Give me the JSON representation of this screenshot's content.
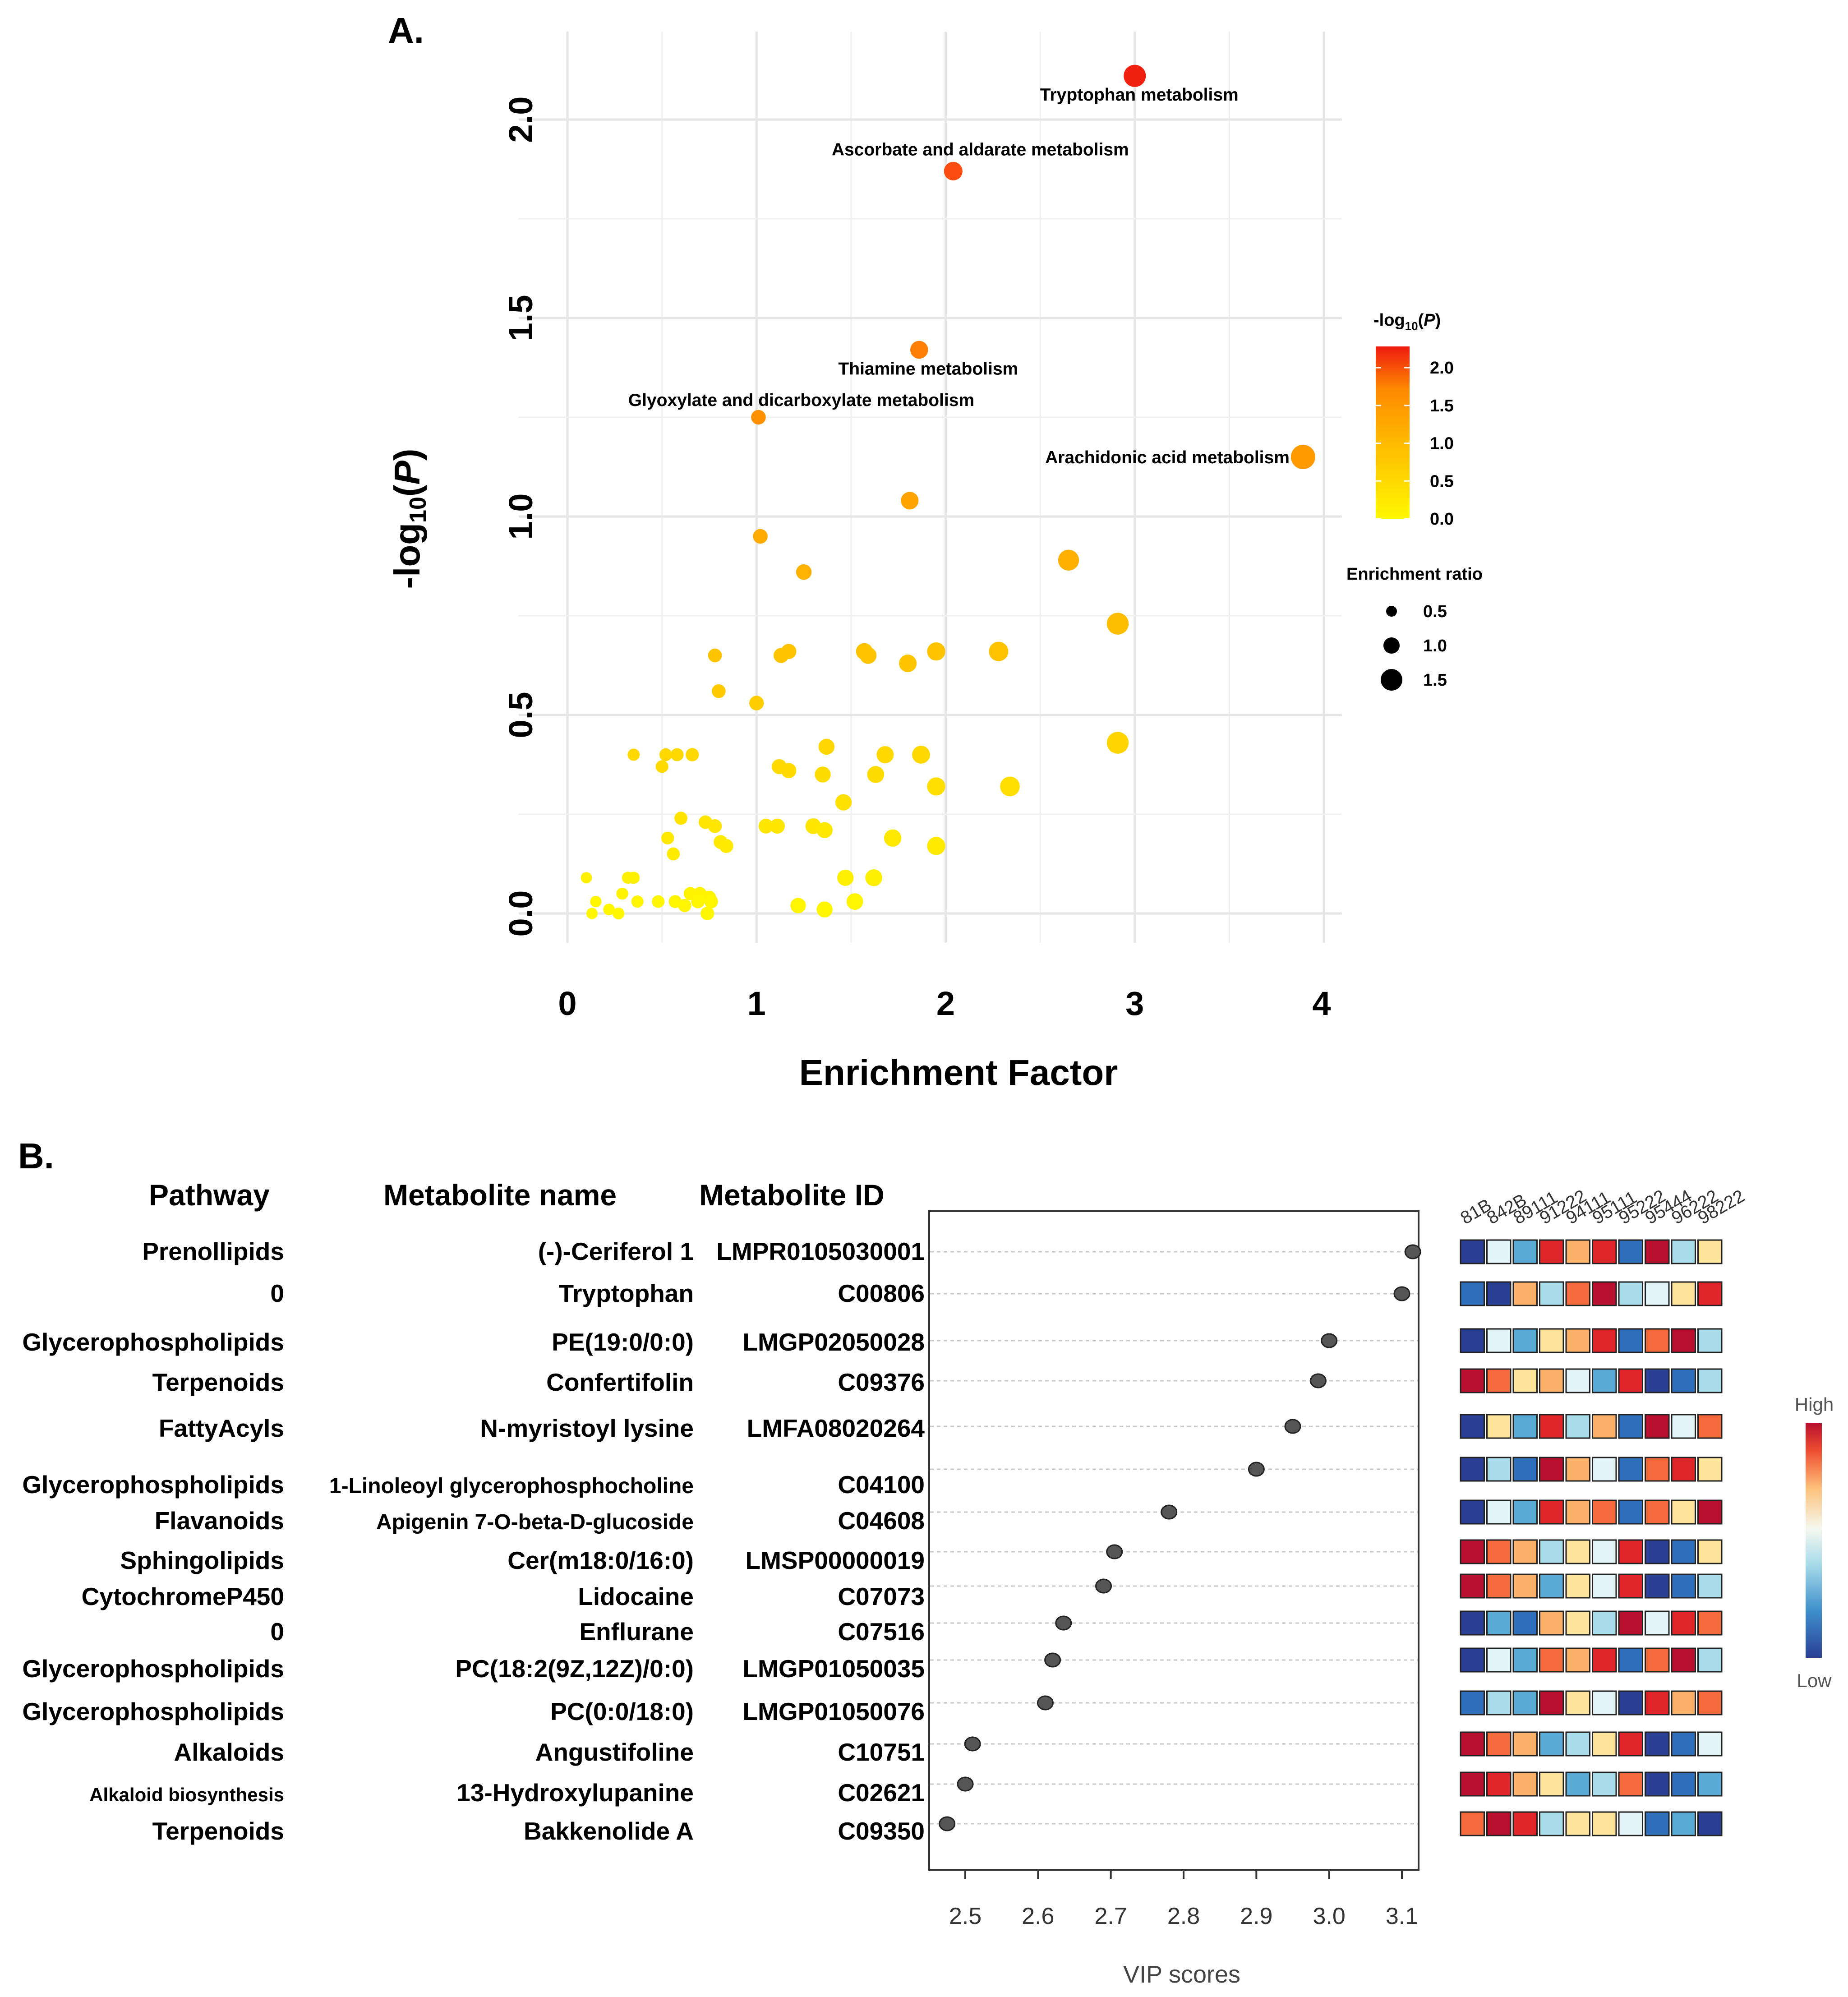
{
  "panel_a": {
    "label": "A.",
    "xlabel": "Enrichment Factor",
    "ylabel_main": "-log",
    "ylabel_sub": "10",
    "ylabel_open": "(",
    "ylabel_var": "P",
    "ylabel_close": ")",
    "color_legend": {
      "title_main": "-log",
      "title_sub": "10",
      "title_open": "(",
      "title_var": "P",
      "title_close": ")",
      "ticks": [
        "2.0",
        "1.5",
        "1.0",
        "0.5",
        "0.0"
      ],
      "tick_values": [
        2.0,
        1.5,
        1.0,
        0.5,
        0.0
      ],
      "colors": [
        "#fff200",
        "#ffc200",
        "#ff9a00",
        "#ff6010",
        "#ee1a10"
      ]
    },
    "size_legend": {
      "title": "Enrichment ratio",
      "labels": [
        "0.5",
        "1.0",
        "1.5"
      ],
      "values": [
        0.5,
        1.0,
        1.5
      ]
    }
  },
  "panel_b": {
    "label": "B.",
    "headers": {
      "pathway": "Pathway",
      "metabolite_name": "Metabolite name",
      "metabolite_id": "Metabolite ID"
    },
    "rows": [
      {
        "pathway": "Prenollipids",
        "name": "(-)-Ceriferol 1",
        "id": "LMPR0105030001",
        "vip": 3.115
      },
      {
        "pathway": "0",
        "name": "Tryptophan",
        "id": "C00806",
        "vip": 3.1
      },
      {
        "pathway": "Glycerophospholipids",
        "name": "PE(19:0/0:0)",
        "id": "LMGP02050028",
        "vip": 3.0
      },
      {
        "pathway": "Terpenoids",
        "name": "Confertifolin",
        "id": "C09376",
        "vip": 2.985
      },
      {
        "pathway": "FattyAcyls",
        "name": "N-myristoyl lysine",
        "id": "LMFA08020264",
        "vip": 2.95
      },
      {
        "pathway": "Glycerophospholipids",
        "name": "1-Linoleoyl glycerophosphocholine",
        "id": "C04100",
        "vip": 2.9
      },
      {
        "pathway": "Flavanoids",
        "name": "Apigenin 7-O-beta-D-glucoside",
        "id": "C04608",
        "vip": 2.78
      },
      {
        "pathway": "Sphingolipids",
        "name": "Cer(m18:0/16:0)",
        "id": "LMSP00000019",
        "vip": 2.705
      },
      {
        "pathway": "CytochromeP450",
        "name": "Lidocaine",
        "id": "C07073",
        "vip": 2.69
      },
      {
        "pathway": "0",
        "name": "Enflurane",
        "id": "C07516",
        "vip": 2.635
      },
      {
        "pathway": "Glycerophospholipids",
        "name": "PC(18:2(9Z,12Z)/0:0)",
        "id": "LMGP01050035",
        "vip": 2.62
      },
      {
        "pathway": "Glycerophospholipids",
        "name": "PC(0:0/18:0)",
        "id": "LMGP01050076",
        "vip": 2.61
      },
      {
        "pathway": "Alkaloids",
        "name": "Angustifoline",
        "id": "C10751",
        "vip": 2.51
      },
      {
        "pathway": "Alkaloid biosynthesis",
        "name": "13-Hydroxylupanine",
        "id": "C02621",
        "vip": 2.5
      },
      {
        "pathway": "Terpenoids",
        "name": "Bakkenolide A",
        "id": "C09350",
        "vip": 2.475
      }
    ],
    "vip_axis": {
      "title": "VIP scores",
      "ticks": [
        "2.5",
        "2.6",
        "2.7",
        "2.8",
        "2.9",
        "3.0",
        "3.1"
      ]
    },
    "heatmap": {
      "samples": [
        "81B",
        "842B",
        "89111",
        "91222",
        "94111",
        "95111",
        "95222",
        "95444",
        "96222",
        "98222"
      ],
      "legend_high": "High",
      "legend_low": "Low",
      "palette": [
        "#2b3f95",
        "#2f6fbb",
        "#5aaad6",
        "#a9dcea",
        "#e2f4f7",
        "#fee39a",
        "#fbb06a",
        "#f46a3c",
        "#e0262a",
        "#b8102e"
      ]
    }
  },
  "chart_data": [
    {
      "type": "scatter",
      "title": "A.",
      "xlabel": "Enrichment Factor",
      "ylabel": "-log10(P)",
      "xlim": [
        0,
        4
      ],
      "ylim": [
        -0.05,
        2.2
      ],
      "xticks": [
        "0",
        "1",
        "2",
        "3",
        "4"
      ],
      "yticks": [
        "0.0",
        "0.5",
        "1.0",
        "1.5",
        "2.0"
      ],
      "color_encodes": "-log10(P)",
      "size_encodes": "Enrichment ratio",
      "points": [
        {
          "x": 3.0,
          "y": 2.11,
          "label": "Tryptophan metabolism"
        },
        {
          "x": 2.04,
          "y": 1.87,
          "label": "Ascorbate and aldarate metabolism"
        },
        {
          "x": 1.86,
          "y": 1.42,
          "label": "Thiamine metabolism"
        },
        {
          "x": 1.01,
          "y": 1.25,
          "label": "Glyoxylate and dicarboxylate metabolism"
        },
        {
          "x": 3.89,
          "y": 1.15,
          "label": "Arachidonic acid metabolism"
        },
        {
          "x": 1.81,
          "y": 1.04
        },
        {
          "x": 1.02,
          "y": 0.95
        },
        {
          "x": 1.25,
          "y": 0.86
        },
        {
          "x": 2.65,
          "y": 0.89
        },
        {
          "x": 2.91,
          "y": 0.73
        },
        {
          "x": 0.78,
          "y": 0.65
        },
        {
          "x": 1.13,
          "y": 0.65
        },
        {
          "x": 1.17,
          "y": 0.66
        },
        {
          "x": 1.57,
          "y": 0.66
        },
        {
          "x": 1.59,
          "y": 0.65
        },
        {
          "x": 1.8,
          "y": 0.63
        },
        {
          "x": 1.95,
          "y": 0.66
        },
        {
          "x": 2.28,
          "y": 0.66
        },
        {
          "x": 0.8,
          "y": 0.56
        },
        {
          "x": 1.0,
          "y": 0.53
        },
        {
          "x": 0.35,
          "y": 0.4
        },
        {
          "x": 0.52,
          "y": 0.4
        },
        {
          "x": 0.58,
          "y": 0.4
        },
        {
          "x": 0.66,
          "y": 0.4
        },
        {
          "x": 0.5,
          "y": 0.37
        },
        {
          "x": 1.37,
          "y": 0.42
        },
        {
          "x": 1.68,
          "y": 0.4
        },
        {
          "x": 1.87,
          "y": 0.4
        },
        {
          "x": 2.91,
          "y": 0.43
        },
        {
          "x": 1.12,
          "y": 0.37
        },
        {
          "x": 1.17,
          "y": 0.36
        },
        {
          "x": 1.35,
          "y": 0.35
        },
        {
          "x": 1.63,
          "y": 0.35
        },
        {
          "x": 1.95,
          "y": 0.32
        },
        {
          "x": 2.34,
          "y": 0.32
        },
        {
          "x": 1.46,
          "y": 0.28
        },
        {
          "x": 0.6,
          "y": 0.24
        },
        {
          "x": 0.73,
          "y": 0.23
        },
        {
          "x": 0.78,
          "y": 0.22
        },
        {
          "x": 1.05,
          "y": 0.22
        },
        {
          "x": 1.11,
          "y": 0.22
        },
        {
          "x": 1.3,
          "y": 0.22
        },
        {
          "x": 1.36,
          "y": 0.21
        },
        {
          "x": 0.53,
          "y": 0.19
        },
        {
          "x": 0.81,
          "y": 0.18
        },
        {
          "x": 0.84,
          "y": 0.17
        },
        {
          "x": 1.72,
          "y": 0.19
        },
        {
          "x": 1.95,
          "y": 0.17
        },
        {
          "x": 0.56,
          "y": 0.15
        },
        {
          "x": 0.1,
          "y": 0.09
        },
        {
          "x": 0.32,
          "y": 0.09
        },
        {
          "x": 0.35,
          "y": 0.09
        },
        {
          "x": 1.47,
          "y": 0.09
        },
        {
          "x": 1.62,
          "y": 0.09
        },
        {
          "x": 0.29,
          "y": 0.05
        },
        {
          "x": 0.65,
          "y": 0.05
        },
        {
          "x": 0.7,
          "y": 0.05
        },
        {
          "x": 0.75,
          "y": 0.04
        },
        {
          "x": 0.15,
          "y": 0.03
        },
        {
          "x": 0.37,
          "y": 0.03
        },
        {
          "x": 0.48,
          "y": 0.03
        },
        {
          "x": 0.57,
          "y": 0.03
        },
        {
          "x": 0.62,
          "y": 0.02
        },
        {
          "x": 0.69,
          "y": 0.03
        },
        {
          "x": 0.76,
          "y": 0.03
        },
        {
          "x": 1.22,
          "y": 0.02
        },
        {
          "x": 1.52,
          "y": 0.03
        },
        {
          "x": 0.22,
          "y": 0.01
        },
        {
          "x": 0.27,
          "y": 0.0
        },
        {
          "x": 0.13,
          "y": 0.0
        },
        {
          "x": 0.74,
          "y": 0.0
        },
        {
          "x": 1.36,
          "y": 0.01
        }
      ]
    },
    {
      "type": "scatter",
      "title": "B.",
      "xlabel": "VIP scores",
      "xlim": [
        2.445,
        3.13
      ],
      "xticks": [
        "2.5",
        "2.6",
        "2.7",
        "2.8",
        "2.9",
        "3.0",
        "3.1"
      ],
      "categories": [
        "(-)-Ceriferol 1",
        "Tryptophan",
        "PE(19:0/0:0)",
        "Confertifolin",
        "N-myristoyl lysine",
        "1-Linoleoyl glycerophosphocholine",
        "Apigenin 7-O-beta-D-glucoside",
        "Cer(m18:0/16:0)",
        "Lidocaine",
        "Enflurane",
        "PC(18:2(9Z,12Z)/0:0)",
        "PC(0:0/18:0)",
        "Angustifoline",
        "13-Hydroxylupanine",
        "Bakkenolide A"
      ],
      "values": [
        3.115,
        3.1,
        3.0,
        2.985,
        2.95,
        2.9,
        2.78,
        2.705,
        2.69,
        2.635,
        2.62,
        2.61,
        2.51,
        2.5,
        2.475
      ]
    },
    {
      "type": "heatmap",
      "x": [
        "81B",
        "842B",
        "89111",
        "91222",
        "94111",
        "95111",
        "95222",
        "95444",
        "96222",
        "98222"
      ],
      "y": [
        "(-)-Ceriferol 1",
        "Tryptophan",
        "PE(19:0/0:0)",
        "Confertifolin",
        "N-myristoyl lysine",
        "1-Linoleoyl glycerophosphocholine",
        "Apigenin 7-O-beta-D-glucoside",
        "Cer(m18:0/16:0)",
        "Lidocaine",
        "Enflurane",
        "PC(18:2(9Z,12Z)/0:0)",
        "PC(0:0/18:0)",
        "Angustifoline",
        "13-Hydroxylupanine",
        "Bakkenolide A"
      ],
      "scale": "0 = Low ... 9 = High",
      "values": [
        [
          0,
          4,
          2,
          8,
          6,
          8,
          1,
          9,
          3,
          5
        ],
        [
          1,
          0,
          6,
          3,
          7,
          9,
          3,
          4,
          5,
          8
        ],
        [
          0,
          4,
          2,
          5,
          6,
          8,
          1,
          7,
          9,
          3
        ],
        [
          9,
          7,
          5,
          6,
          4,
          2,
          8,
          0,
          1,
          3
        ],
        [
          0,
          5,
          2,
          8,
          3,
          6,
          1,
          9,
          4,
          7
        ],
        [
          0,
          3,
          1,
          9,
          6,
          4,
          1,
          7,
          8,
          5
        ],
        [
          0,
          4,
          2,
          8,
          6,
          7,
          1,
          7,
          5,
          9
        ],
        [
          9,
          7,
          6,
          3,
          5,
          4,
          8,
          0,
          1,
          5
        ],
        [
          9,
          7,
          6,
          2,
          5,
          4,
          8,
          0,
          1,
          3
        ],
        [
          0,
          2,
          1,
          6,
          5,
          3,
          9,
          4,
          8,
          7
        ],
        [
          0,
          4,
          2,
          7,
          6,
          8,
          1,
          7,
          9,
          3
        ],
        [
          1,
          3,
          2,
          9,
          5,
          4,
          0,
          8,
          6,
          7
        ],
        [
          9,
          7,
          6,
          2,
          3,
          5,
          8,
          0,
          1,
          4
        ],
        [
          9,
          8,
          6,
          5,
          2,
          3,
          7,
          0,
          1,
          2
        ],
        [
          7,
          9,
          8,
          3,
          5,
          5,
          4,
          1,
          2,
          0
        ]
      ]
    }
  ]
}
